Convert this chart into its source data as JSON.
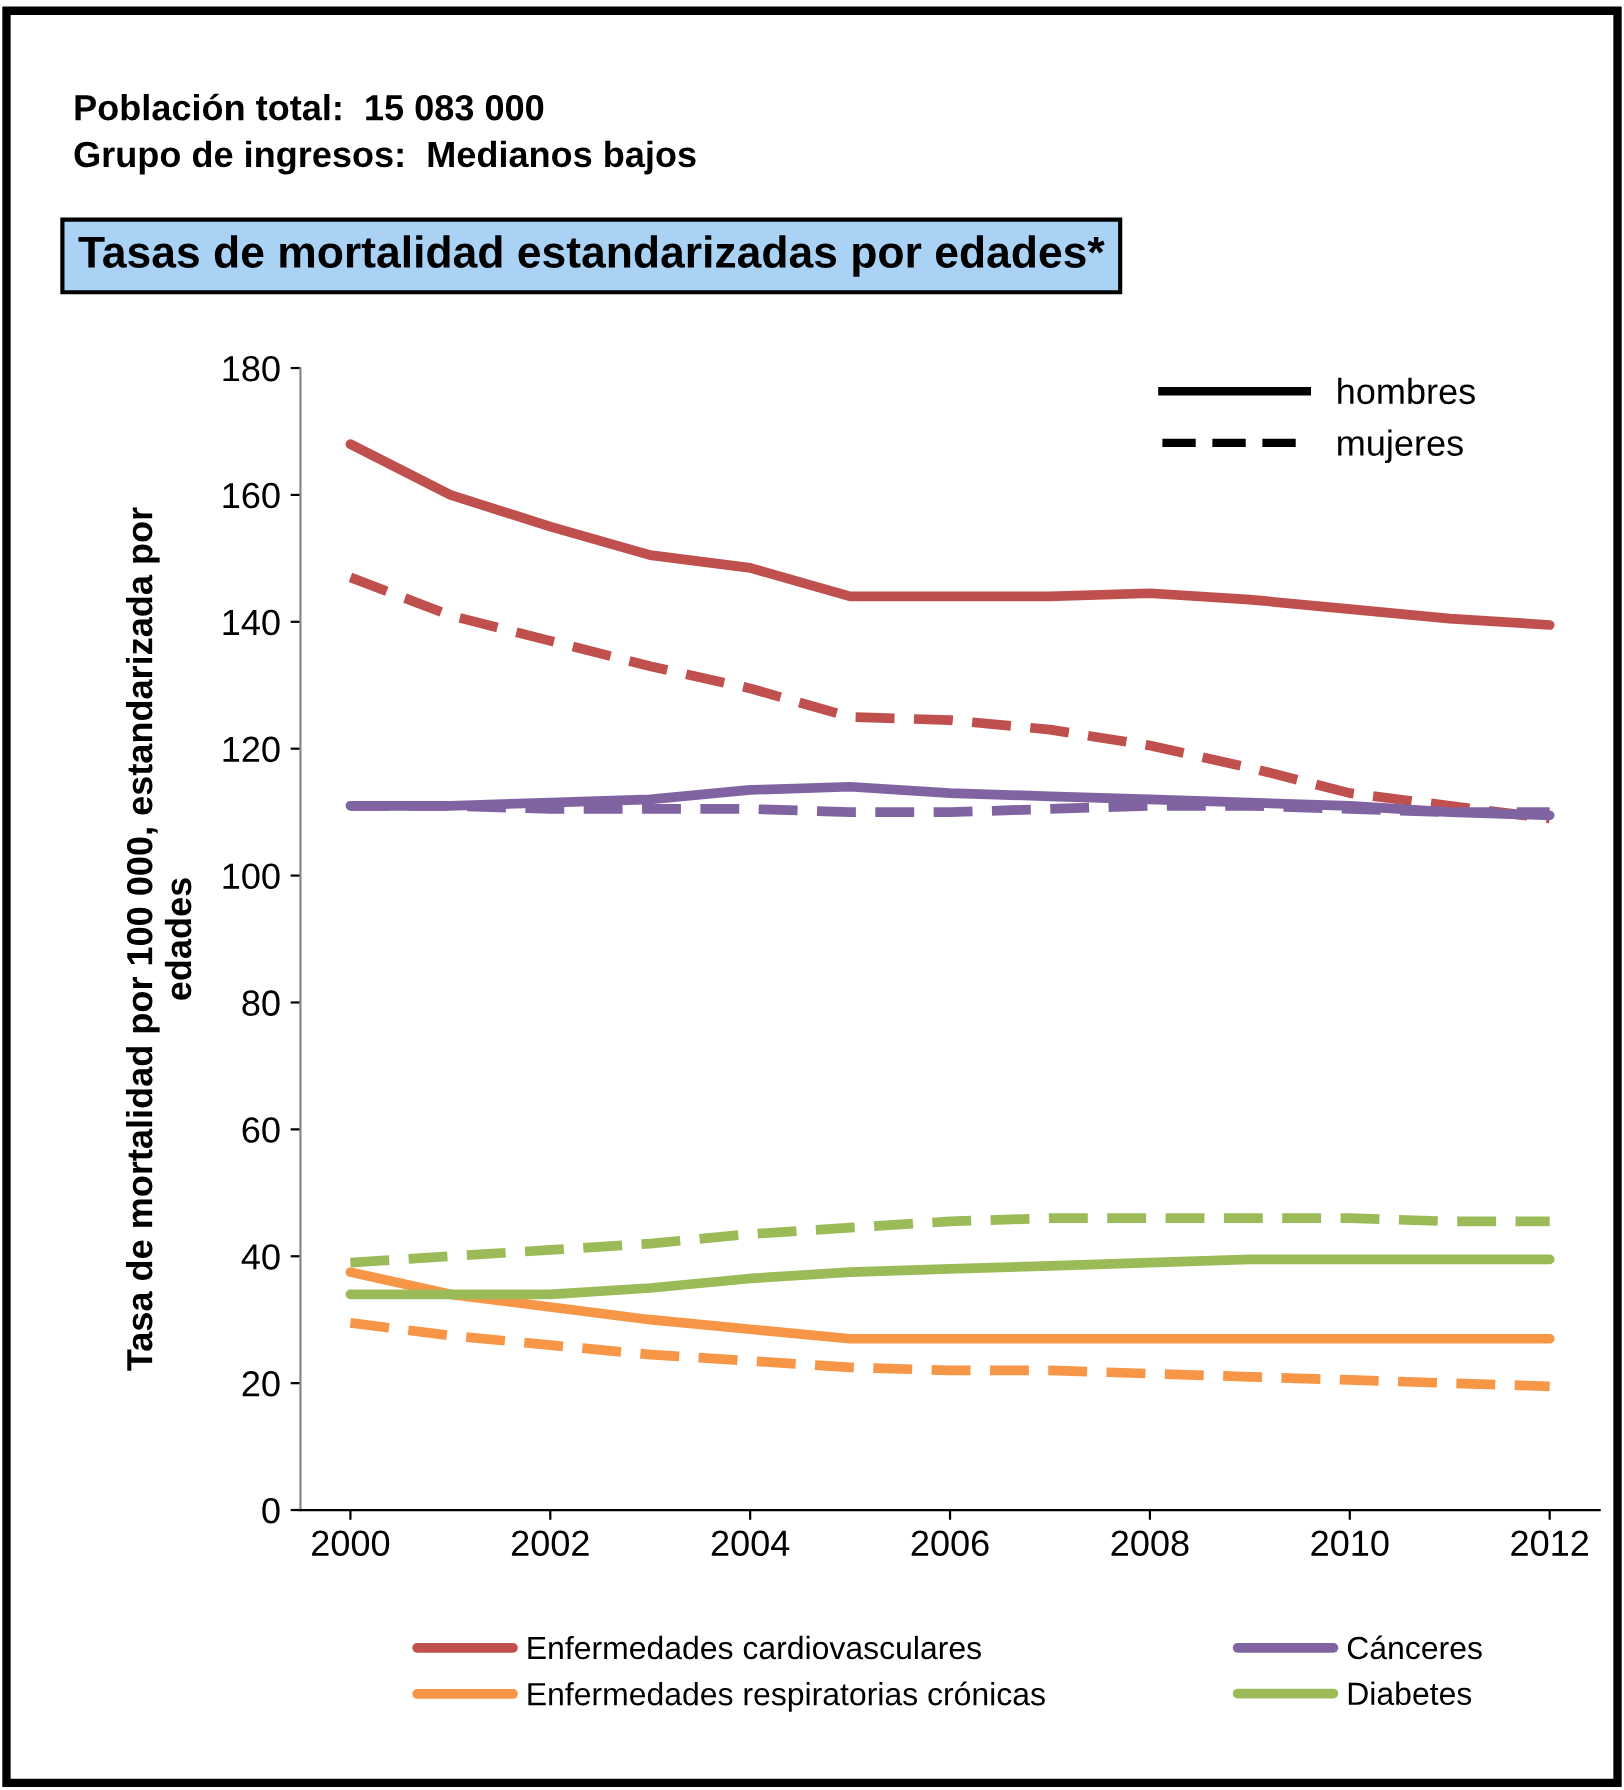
{
  "chart_data": {
    "type": "line",
    "title": "Tasas de mortalidad estandarizadas por edades*",
    "subtitle": "Población total:  15 083 000\nGrupo de ingresos:  Medianos bajos",
    "ylabel": "Tasa de mortalidad por 100 000, estandarizada por\nedades",
    "annotations": [
      "hombres",
      "mujeres"
    ],
    "x": [
      2000,
      2001,
      2002,
      2003,
      2004,
      2005,
      2006,
      2007,
      2008,
      2009,
      2010,
      2011,
      2012
    ],
    "xlim": [
      1999.5,
      2012.5
    ],
    "xticks": [
      2000,
      2002,
      2004,
      2006,
      2008,
      2010,
      2012
    ],
    "ylim": [
      0,
      180
    ],
    "yticks": [
      0,
      20,
      40,
      60,
      80,
      100,
      120,
      140,
      160,
      180
    ],
    "grid": false,
    "legend": "bottom",
    "marker": "none",
    "series": [
      {
        "name": "Enfermedades cardiovasculares",
        "color": "#c0504d",
        "line_style": "solid",
        "values": [
          168,
          160,
          155,
          150.5,
          148.5,
          144,
          144,
          144,
          144.5,
          143.5,
          142,
          140.5,
          139.5
        ]
      },
      {
        "color": "#c0504d",
        "line_style": "dashed",
        "values": [
          147,
          141,
          137,
          133,
          129.5,
          125,
          124.5,
          123,
          120.5,
          117,
          113,
          111,
          109
        ]
      },
      {
        "name": "Enfermedades respiratorias crónicas",
        "color": "#f79646",
        "line_style": "solid",
        "values": [
          37.5,
          34,
          32,
          30,
          28.5,
          27,
          27,
          27,
          27,
          27,
          27,
          27,
          27
        ]
      },
      {
        "color": "#f79646",
        "line_style": "dashed",
        "values": [
          29.5,
          27.5,
          26,
          24.5,
          23.5,
          22.5,
          22,
          22,
          21.5,
          21,
          20.5,
          20,
          19.5
        ]
      },
      {
        "name": "Cánceres",
        "color": "#8064a2",
        "line_style": "solid",
        "values": [
          111,
          111,
          111.5,
          112,
          113.5,
          114,
          113,
          112.5,
          112,
          111.5,
          111,
          110,
          109.5
        ]
      },
      {
        "color": "#8064a2",
        "line_style": "dashed",
        "values": [
          111,
          111,
          110.5,
          110.5,
          110.5,
          110,
          110,
          110.5,
          111,
          111,
          110.5,
          110,
          110
        ]
      },
      {
        "name": "Diabetes",
        "color": "#9bbb59",
        "line_style": "solid",
        "values": [
          34,
          34,
          34,
          35,
          36.5,
          37.5,
          38,
          38.5,
          39,
          39.5,
          39.5,
          39.5,
          39.5
        ]
      },
      {
        "color": "#9bbb59",
        "line_style": "dashed",
        "values": [
          39,
          40,
          41,
          42,
          43.5,
          44.5,
          45.5,
          46,
          46,
          46,
          46,
          45.5,
          45.5
        ]
      }
    ]
  }
}
